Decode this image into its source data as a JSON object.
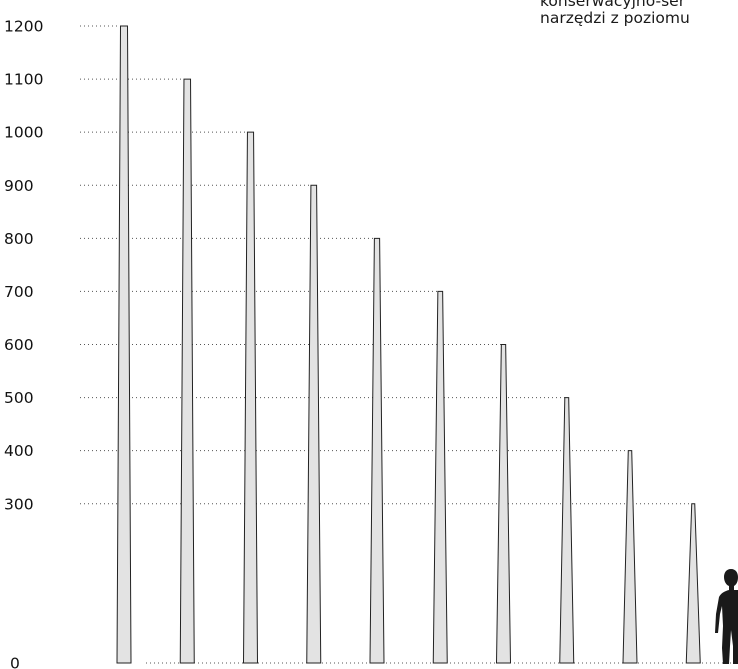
{
  "caption": {
    "line1": "konserwacyjno-ser",
    "line2": "narzędzi z poziomu"
  },
  "chart_data": {
    "type": "bar",
    "title": "",
    "xlabel": "",
    "ylabel": "",
    "y_tick_labels": [
      "1200",
      "1100",
      "1000",
      "900",
      "800",
      "700",
      "600",
      "500",
      "400",
      "300",
      "0"
    ],
    "values": [
      1200,
      1100,
      1000,
      900,
      800,
      700,
      600,
      500,
      400,
      300
    ],
    "grid": "dotted leader lines from each tick label to its column",
    "reference_figure": "human silhouette at the right edge for scale"
  },
  "colors": {
    "bar_fill": "#e3e3e3",
    "bar_stroke": "#222222",
    "leader_line": "#555555",
    "figure": "#1a1a1a",
    "text": "#111111"
  }
}
